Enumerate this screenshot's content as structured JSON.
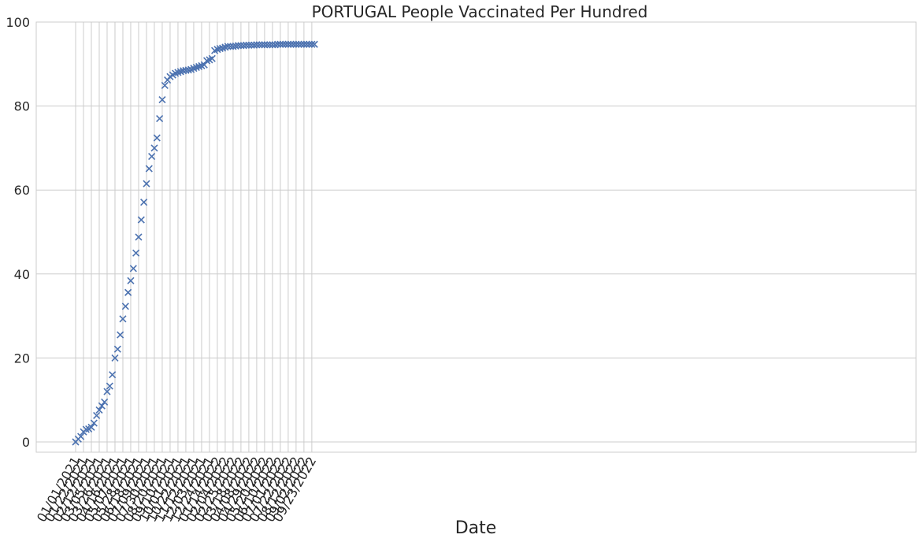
{
  "chart_data": {
    "type": "scatter",
    "title": "PORTUGAL   People Vaccinated Per Hundred",
    "xlabel": "Date",
    "ylabel": "",
    "ylim": [
      0,
      100
    ],
    "yticks": [
      0,
      20,
      40,
      60,
      80,
      100
    ],
    "xticks": [
      "01/01/2021",
      "01/22/2021",
      "02/12/2021",
      "03/05/2021",
      "03/26/2021",
      "04/16/2021",
      "05/07/2021",
      "05/28/2021",
      "06/18/2021",
      "07/09/2021",
      "07/30/2021",
      "08/20/2021",
      "09/10/2021",
      "10/01/2021",
      "10/22/2021",
      "11/12/2021",
      "12/03/2021",
      "12/24/2021",
      "01/14/2022",
      "02/04/2022",
      "02/25/2022",
      "03/18/2022",
      "04/08/2022",
      "04/29/2022",
      "05/20/2022",
      "06/10/2022",
      "07/01/2022",
      "07/22/2022",
      "08/12/2022",
      "09/02/2022",
      "09/23/2022"
    ],
    "xtick_rotation_deg": 60,
    "grid": true,
    "marker": "x",
    "color": "#4c72b0",
    "series": [
      {
        "x": [
          "01/01/2021",
          "01/08/2021",
          "01/15/2021",
          "01/22/2021",
          "01/29/2021",
          "02/05/2021",
          "02/12/2021",
          "02/19/2021",
          "02/26/2021",
          "03/05/2021",
          "03/12/2021",
          "03/19/2021",
          "03/26/2021",
          "04/02/2021",
          "04/09/2021",
          "04/16/2021",
          "04/23/2021",
          "04/30/2021",
          "05/07/2021",
          "05/14/2021",
          "05/21/2021",
          "05/28/2021",
          "06/04/2021",
          "06/11/2021",
          "06/18/2021",
          "06/25/2021",
          "07/02/2021",
          "07/09/2021",
          "07/16/2021",
          "07/23/2021",
          "07/30/2021",
          "08/06/2021",
          "08/13/2021",
          "08/20/2021",
          "08/27/2021",
          "09/03/2021",
          "09/10/2021",
          "09/17/2021",
          "09/24/2021",
          "10/01/2021",
          "10/08/2021",
          "10/15/2021",
          "10/22/2021",
          "10/29/2021",
          "11/05/2021",
          "11/12/2021",
          "11/19/2021",
          "11/26/2021",
          "12/03/2021",
          "12/10/2021",
          "12/17/2021",
          "12/24/2021",
          "12/31/2021",
          "01/07/2022",
          "01/14/2022",
          "01/21/2022",
          "01/28/2022",
          "02/04/2022",
          "02/11/2022",
          "02/18/2022",
          "02/25/2022",
          "03/04/2022",
          "03/11/2022",
          "03/18/2022",
          "03/25/2022",
          "04/01/2022",
          "04/08/2022",
          "04/15/2022",
          "04/22/2022",
          "04/29/2022",
          "05/06/2022",
          "05/13/2022",
          "05/20/2022",
          "05/27/2022",
          "06/03/2022",
          "06/10/2022",
          "06/17/2022",
          "06/24/2022",
          "07/01/2022",
          "07/08/2022",
          "07/15/2022",
          "07/22/2022",
          "07/29/2022",
          "08/05/2022",
          "08/12/2022",
          "08/19/2022",
          "08/26/2022",
          "09/02/2022",
          "09/09/2022",
          "09/16/2022",
          "09/23/2022",
          "09/30/2022"
        ],
        "y": [
          0.0,
          0.7,
          1.3,
          2.4,
          3.0,
          3.1,
          3.5,
          4.5,
          6.3,
          7.6,
          8.6,
          9.5,
          12.0,
          13.3,
          16.0,
          20.0,
          22.1,
          25.5,
          29.3,
          32.3,
          35.6,
          38.4,
          41.3,
          45.0,
          48.8,
          52.9,
          57.1,
          61.5,
          65.1,
          68.0,
          70.0,
          72.4,
          77.0,
          81.5,
          84.9,
          86.2,
          87.0,
          87.4,
          87.8,
          88.0,
          88.2,
          88.4,
          88.5,
          88.6,
          88.7,
          89.0,
          89.2,
          89.4,
          89.6,
          89.8,
          90.8,
          91.0,
          91.3,
          93.2,
          93.5,
          93.7,
          93.8,
          94.0,
          94.2,
          94.2,
          94.2,
          94.3,
          94.4,
          94.4,
          94.4,
          94.5,
          94.5,
          94.5,
          94.5,
          94.6,
          94.6,
          94.6,
          94.6,
          94.6,
          94.6,
          94.6,
          94.6,
          94.7,
          94.7,
          94.7,
          94.7,
          94.7,
          94.7,
          94.7,
          94.7,
          94.7,
          94.7,
          94.7,
          94.7,
          94.7,
          94.7,
          94.7
        ]
      }
    ]
  }
}
